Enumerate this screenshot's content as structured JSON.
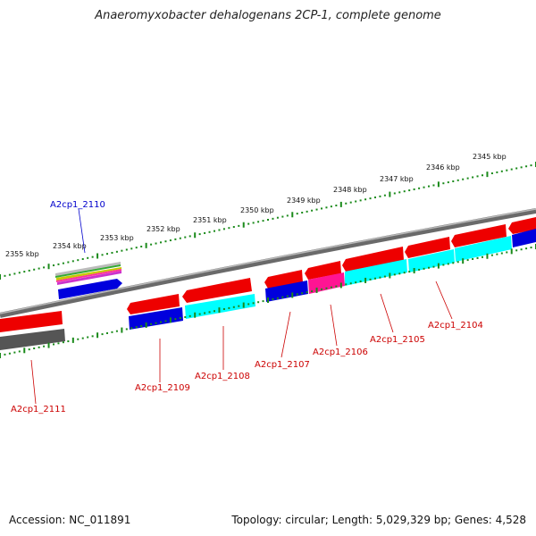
{
  "title": "Anaeromyxobacter dehalogenans 2CP-1, complete genome",
  "footer": {
    "accession": "Accession: NC_011891",
    "summary": "Topology: circular; Length: 5,029,329 bp; Genes: 4,528"
  },
  "colors": {
    "red": "#ff0000",
    "blue": "#0000dd",
    "cyan": "#00ffff",
    "magenta": "#ff1493",
    "gray": "#666666",
    "tick_green": "#1a8a1a",
    "label_red": "#cc0000",
    "label_blue": "#0000cc"
  },
  "kbp_labels": [
    "2355 kbp",
    "2354 kbp",
    "2353 kbp",
    "2352 kbp",
    "2351 kbp",
    "2350 kbp",
    "2349 kbp",
    "2348 kbp",
    "2347 kbp",
    "2346 kbp",
    "2345 kbp"
  ],
  "gene_labels": [
    {
      "name": "A2cp1_2110",
      "color": "blue"
    },
    {
      "name": "A2cp1_2111",
      "color": "red"
    },
    {
      "name": "A2cp1_2109",
      "color": "red"
    },
    {
      "name": "A2cp1_2108",
      "color": "red"
    },
    {
      "name": "A2cp1_2107",
      "color": "red"
    },
    {
      "name": "A2cp1_2106",
      "color": "red"
    },
    {
      "name": "A2cp1_2105",
      "color": "red"
    },
    {
      "name": "A2cp1_2104",
      "color": "red"
    }
  ]
}
